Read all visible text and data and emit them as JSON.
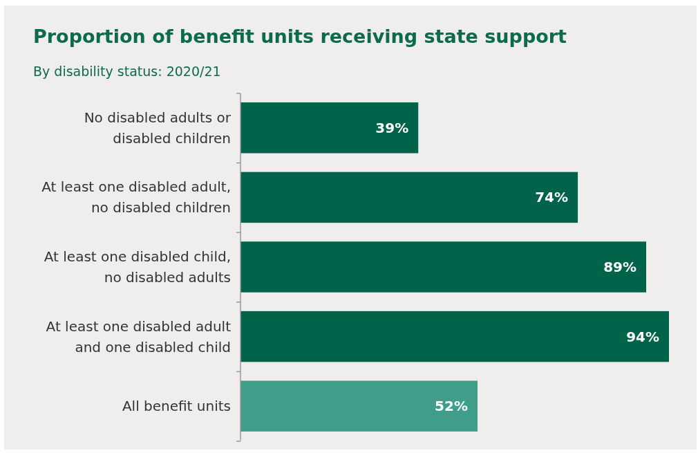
{
  "chart_data": {
    "type": "bar",
    "orientation": "horizontal",
    "title": "Proportion of benefit units receiving state support",
    "subtitle": "By disability status: 2020/21",
    "categories": [
      "No disabled adults or disabled children",
      "At least one disabled adult, no disabled children",
      "At least one disabled child, no disabled adults",
      "At least one disabled adult and one disabled child",
      "All benefit units"
    ],
    "values": [
      39,
      74,
      89,
      94,
      52
    ],
    "value_labels": [
      "39%",
      "74%",
      "89%",
      "94%",
      "52%"
    ],
    "colors": [
      "#00634a",
      "#00634a",
      "#00634a",
      "#00634a",
      "#3f9e8a"
    ]
  }
}
